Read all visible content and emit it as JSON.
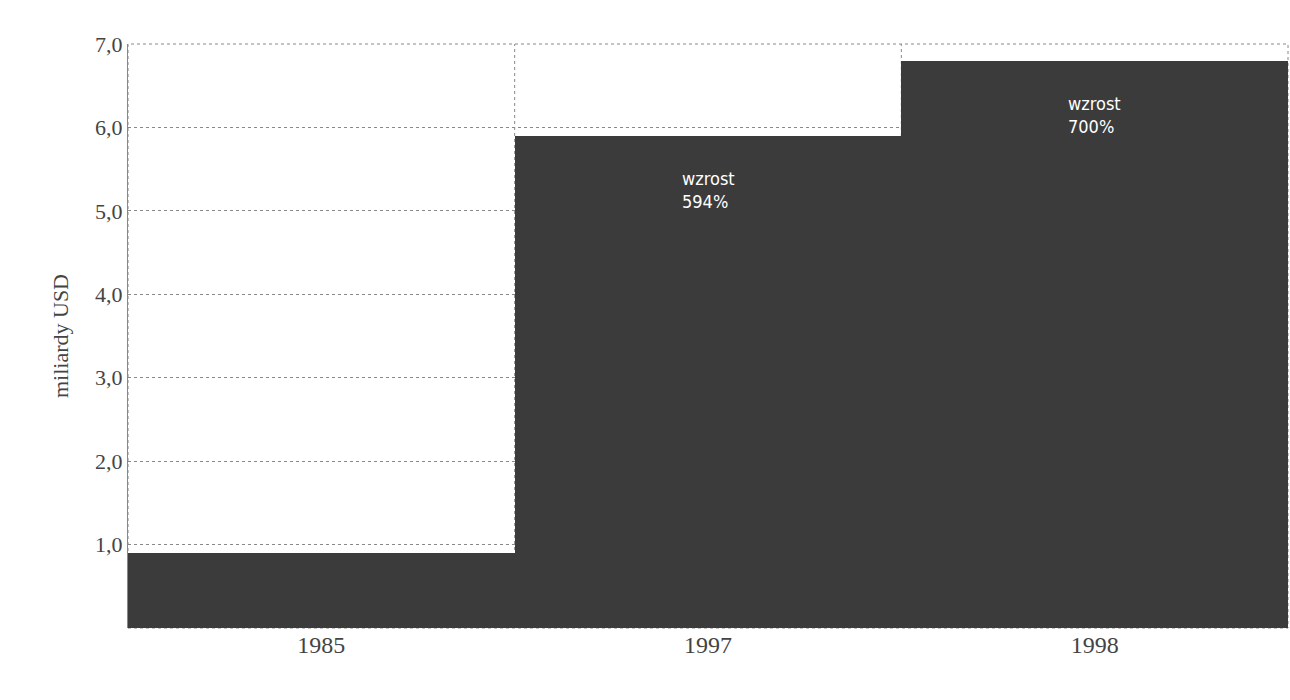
{
  "chart_data": {
    "type": "bar",
    "y_label": "miliardy USD",
    "categories": [
      "1985",
      "1997",
      "1998"
    ],
    "values": [
      0.9,
      5.9,
      6.8
    ],
    "color": "#3b3b3b",
    "ylim": [
      0,
      7
    ],
    "yticks": [
      {
        "value": 1,
        "label": "1,0"
      },
      {
        "value": 2,
        "label": "2,0"
      },
      {
        "value": 3,
        "label": "3,0"
      },
      {
        "value": 4,
        "label": "4,0"
      },
      {
        "value": 5,
        "label": "5,0"
      },
      {
        "value": 6,
        "label": "6,0"
      },
      {
        "value": 7,
        "label": "7,0"
      }
    ],
    "grid": true,
    "annotations": [
      {
        "category": "1997",
        "lines": [
          "wzrost",
          "594%"
        ]
      },
      {
        "category": "1998",
        "lines": [
          "wzrost",
          "700%"
        ]
      }
    ]
  }
}
